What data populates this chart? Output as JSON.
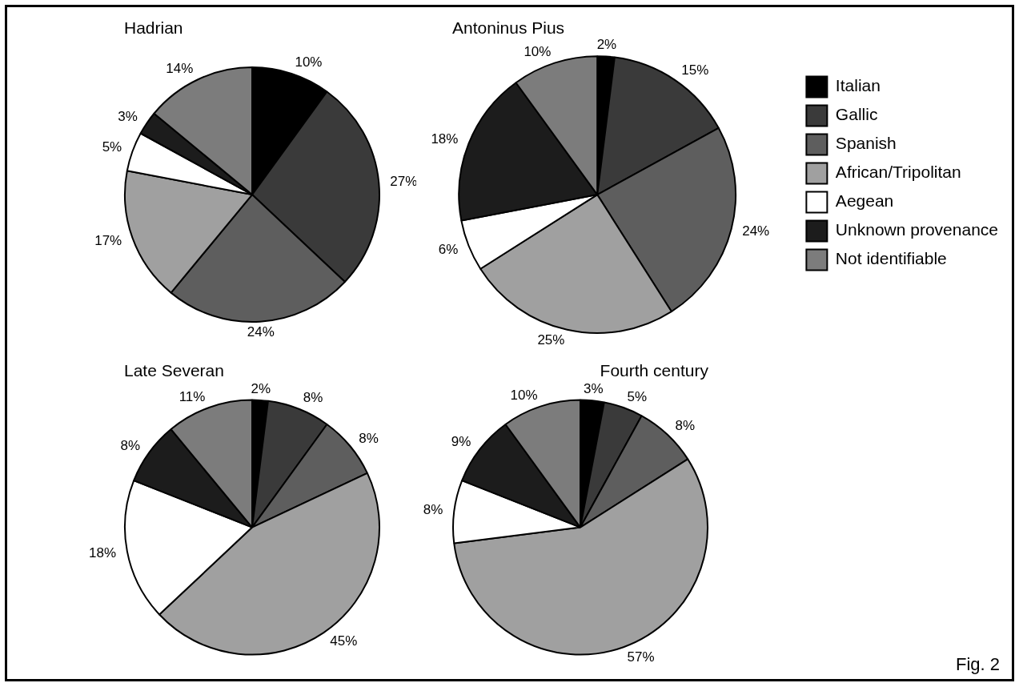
{
  "chart_data": [
    {
      "type": "pie",
      "title": "Hadrian",
      "categories": [
        null,
        null,
        null,
        null,
        null,
        null,
        null
      ],
      "values": [
        10,
        27,
        24,
        17,
        5,
        3,
        14
      ],
      "value_labels": [
        "10%",
        "27%",
        "24%",
        "17%",
        "5%",
        "3%",
        "14%"
      ],
      "colors": [
        "#000000",
        "#3a3a3a",
        "#5e5e5e",
        "#a0a0a0",
        "#ffffff",
        "#1c1c1c",
        "#7c7c7c"
      ],
      "legend": false
    },
    {
      "type": "pie",
      "title": "Antoninus Pius",
      "categories": [
        "Italian",
        "Gallic",
        "Spanish",
        "African/Tripolitan",
        "Aegean",
        "Unknown provenance",
        "Not identifiable"
      ],
      "values": [
        2,
        15,
        24,
        25,
        6,
        18,
        10
      ],
      "value_labels": [
        "2%",
        "15%",
        "24%",
        "25%",
        "6%",
        "18%",
        "10%"
      ],
      "colors": [
        "#000000",
        "#3a3a3a",
        "#5e5e5e",
        "#a0a0a0",
        "#ffffff",
        "#1c1c1c",
        "#7c7c7c"
      ],
      "legend": "right"
    },
    {
      "type": "pie",
      "title": "Late Severan",
      "categories": [
        null,
        null,
        null,
        null,
        null,
        null,
        null
      ],
      "values": [
        2,
        8,
        8,
        45,
        18,
        8,
        11
      ],
      "value_labels": [
        "2%",
        "8%",
        "8%",
        "45%",
        "18%",
        "8%",
        "11%"
      ],
      "colors": [
        "#000000",
        "#3a3a3a",
        "#5e5e5e",
        "#a0a0a0",
        "#ffffff",
        "#1c1c1c",
        "#7c7c7c"
      ],
      "legend": false
    },
    {
      "type": "pie",
      "title": "Fourth century",
      "categories": [
        null,
        null,
        null,
        null,
        null,
        null,
        null
      ],
      "values": [
        3,
        5,
        8,
        57,
        8,
        9,
        10
      ],
      "value_labels": [
        "3%",
        "5%",
        "8%",
        "57%",
        "8%",
        "9%",
        "10%"
      ],
      "colors": [
        "#000000",
        "#3a3a3a",
        "#5e5e5e",
        "#a0a0a0",
        "#ffffff",
        "#1c1c1c",
        "#7c7c7c"
      ],
      "legend": false,
      "annotations": [
        "Fig. 2"
      ]
    }
  ]
}
